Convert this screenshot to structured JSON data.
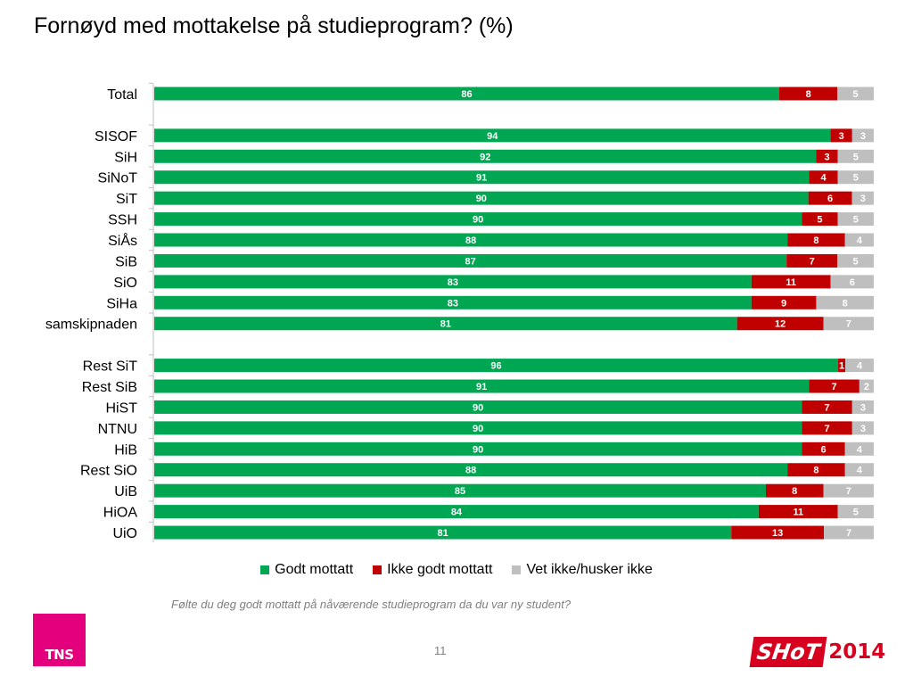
{
  "title": "Fornøyd med mottakelse på studieprogram? (%)",
  "question": "Følte du deg godt mottatt på nåværende studieprogram da du var ny student?",
  "page_number": "11",
  "logos": {
    "tns": "TNS",
    "shot": "SHoT",
    "shot_year": "2014"
  },
  "colors": {
    "godt": "#00a651",
    "ikke": "#c00000",
    "vet": "#bfbfbf"
  },
  "chart_data": {
    "type": "bar",
    "orientation": "horizontal",
    "stacked": true,
    "xlim": [
      0,
      100
    ],
    "grid": false,
    "legend_position": "bottom",
    "categories": [
      "Total",
      "",
      "SISOF",
      "SiH",
      "SiNoT",
      "SiT",
      "SSH",
      "SiÅs",
      "SiB",
      "SiO",
      "SiHa",
      "samskipnaden",
      "",
      "Rest SiT",
      "Rest SiB",
      "HiST",
      "NTNU",
      "HiB",
      "Rest SiO",
      "UiB",
      "HiOA",
      "UiO"
    ],
    "series": [
      {
        "name": "Godt mottatt",
        "values": [
          86,
          null,
          94,
          92,
          91,
          90,
          90,
          88,
          87,
          83,
          83,
          81,
          null,
          96,
          91,
          90,
          90,
          90,
          88,
          85,
          84,
          81
        ]
      },
      {
        "name": "Ikke godt mottatt",
        "values": [
          8,
          null,
          3,
          3,
          4,
          6,
          5,
          8,
          7,
          11,
          9,
          12,
          null,
          1,
          7,
          7,
          7,
          6,
          8,
          8,
          11,
          13
        ]
      },
      {
        "name": "Vet ikke/husker ikke",
        "values": [
          5,
          null,
          3,
          5,
          5,
          3,
          5,
          4,
          5,
          6,
          8,
          7,
          null,
          4,
          2,
          3,
          3,
          4,
          4,
          7,
          5,
          7
        ]
      }
    ]
  }
}
